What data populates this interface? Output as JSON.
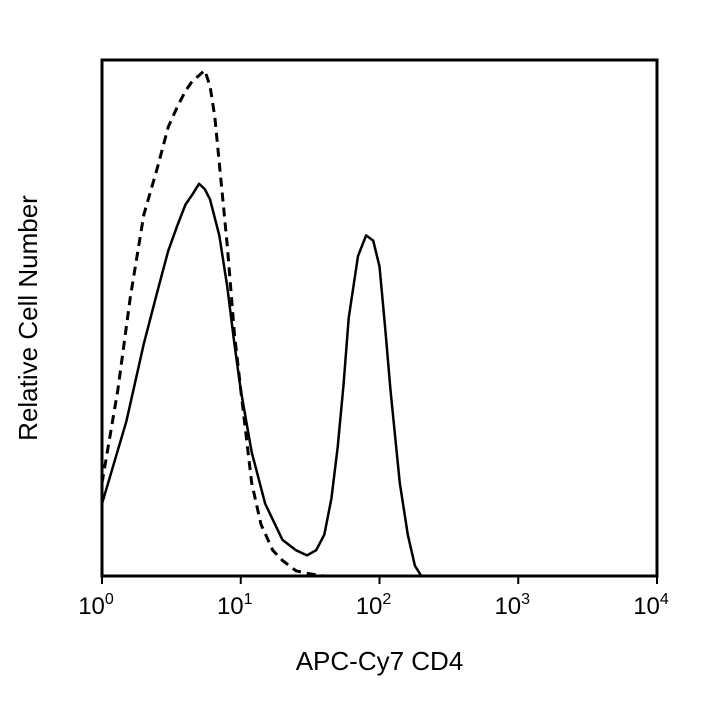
{
  "chart_data": {
    "type": "line",
    "title": "",
    "xlabel": "APC-Cy7 CD4",
    "ylabel": "Relative Cell Number",
    "xscale": "log",
    "xlim": [
      1,
      10000
    ],
    "ylim": [
      0,
      100
    ],
    "grid": false,
    "legend": "none",
    "x_ticks": [
      {
        "base": "10",
        "exp": "0",
        "value": 1
      },
      {
        "base": "10",
        "exp": "1",
        "value": 10
      },
      {
        "base": "10",
        "exp": "2",
        "value": 100
      },
      {
        "base": "10",
        "exp": "3",
        "value": 1000
      },
      {
        "base": "10",
        "exp": "4",
        "value": 10000
      }
    ],
    "series": [
      {
        "style": "dashed",
        "x": [
          1.0,
          1.3,
          1.6,
          2.0,
          2.5,
          3.0,
          3.5,
          4.0,
          4.5,
          5.0,
          5.5,
          6.0,
          6.5,
          7.0,
          8.0,
          9.0,
          10.0,
          12.0,
          14.0,
          17.0,
          20.0,
          25.0,
          30.0,
          40.0
        ],
        "y": [
          18,
          36,
          54,
          70,
          79,
          87,
          91,
          94,
          96,
          97,
          98,
          95,
          89,
          80,
          64,
          47,
          36,
          18,
          10,
          5,
          3,
          1,
          0.5,
          0
        ]
      },
      {
        "style": "solid",
        "x": [
          1.0,
          1.5,
          2.0,
          2.5,
          3.0,
          3.5,
          4.0,
          4.5,
          5.0,
          5.5,
          6.0,
          7.0,
          8.0,
          9.0,
          10.0,
          12.0,
          15.0,
          20.0,
          25.0,
          30.0,
          35.0,
          40.0,
          45.0,
          50.0,
          55.0,
          60.0,
          70.0,
          80.0,
          90.0,
          100.0,
          110.0,
          120.0,
          140.0,
          160.0,
          180.0,
          200.0
        ],
        "y": [
          14,
          30,
          45,
          55,
          63,
          68,
          72,
          74,
          76,
          75,
          73,
          66,
          56,
          45,
          36,
          24,
          14,
          7,
          5,
          4,
          5,
          8,
          15,
          25,
          37,
          50,
          62,
          66,
          65,
          60,
          48,
          36,
          18,
          8,
          2,
          0
        ]
      }
    ]
  }
}
